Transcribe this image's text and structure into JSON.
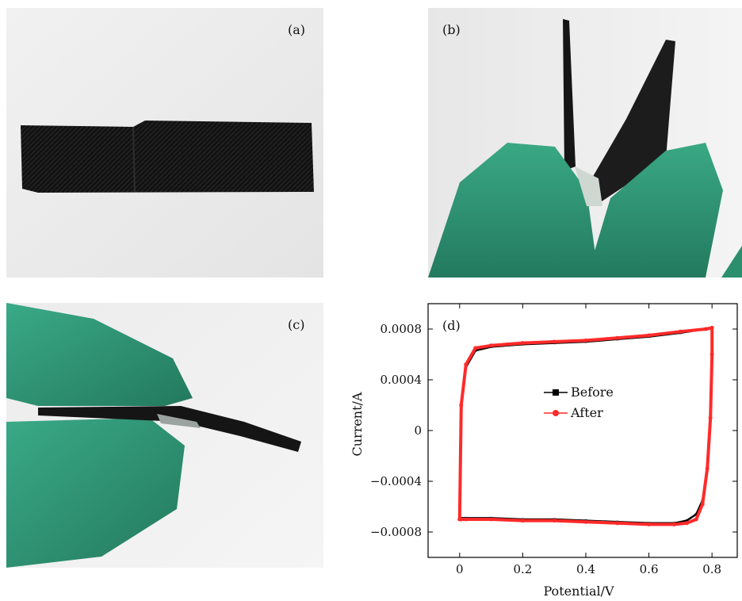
{
  "panels": {
    "a": {
      "label": "(a)"
    },
    "b": {
      "label": "(b)"
    },
    "c": {
      "label": "(c)"
    },
    "d": {
      "label": "(d)"
    }
  },
  "colors": {
    "glove": "#2f9a77",
    "glove_shadow": "#1f6f55",
    "fabric": "#101010",
    "before": "#000000",
    "after": "#ff2a2a"
  },
  "chart_data": {
    "type": "line",
    "xlabel": "Potential/V",
    "ylabel": "Current/A",
    "xlim": [
      -0.1,
      0.88
    ],
    "ylim": [
      -0.001,
      0.001
    ],
    "x_ticks": [
      0,
      0.2,
      0.4,
      0.6,
      0.8
    ],
    "x_tick_labels": [
      "0",
      "0.2",
      "0.4",
      "0.6",
      "0.8"
    ],
    "y_ticks": [
      -0.0008,
      -0.0004,
      0,
      0.0004,
      0.0008
    ],
    "y_tick_labels": [
      "−0.0008",
      "−0.0004",
      "0",
      "0.0004",
      "0.0008"
    ],
    "legend_position": "center",
    "series": [
      {
        "name": "Before",
        "color": "#000000",
        "marker": "square",
        "x": [
          0,
          0.005,
          0.02,
          0.05,
          0.1,
          0.2,
          0.3,
          0.4,
          0.5,
          0.6,
          0.7,
          0.78,
          0.8,
          0.8,
          0.795,
          0.785,
          0.77,
          0.75,
          0.72,
          0.68,
          0.6,
          0.5,
          0.4,
          0.3,
          0.2,
          0.1,
          0.02,
          0.005,
          0
        ],
        "y": [
          -0.00069,
          0.0002,
          0.0005,
          0.00063,
          0.00066,
          0.00068,
          0.00069,
          0.0007,
          0.00072,
          0.00074,
          0.00077,
          0.0008,
          0.00081,
          0.0006,
          0.0001,
          -0.0003,
          -0.00055,
          -0.00066,
          -0.00071,
          -0.00073,
          -0.00073,
          -0.00072,
          -0.00071,
          -0.0007,
          -0.0007,
          -0.00069,
          -0.00069,
          -0.00069,
          -0.00069
        ]
      },
      {
        "name": "After",
        "color": "#ff2a2a",
        "marker": "circle",
        "x": [
          0,
          0.005,
          0.02,
          0.05,
          0.1,
          0.2,
          0.3,
          0.4,
          0.5,
          0.6,
          0.7,
          0.78,
          0.8,
          0.8,
          0.795,
          0.785,
          0.77,
          0.75,
          0.72,
          0.68,
          0.6,
          0.5,
          0.4,
          0.3,
          0.2,
          0.1,
          0.02,
          0.005,
          0
        ],
        "y": [
          -0.0007,
          0.0002,
          0.00052,
          0.00065,
          0.00067,
          0.00069,
          0.0007,
          0.00071,
          0.00073,
          0.00075,
          0.00078,
          0.0008,
          0.00081,
          0.0006,
          0.0001,
          -0.0003,
          -0.00058,
          -0.0007,
          -0.00073,
          -0.00074,
          -0.00074,
          -0.00073,
          -0.00072,
          -0.00071,
          -0.00071,
          -0.0007,
          -0.0007,
          -0.0007,
          -0.0007
        ]
      }
    ]
  }
}
